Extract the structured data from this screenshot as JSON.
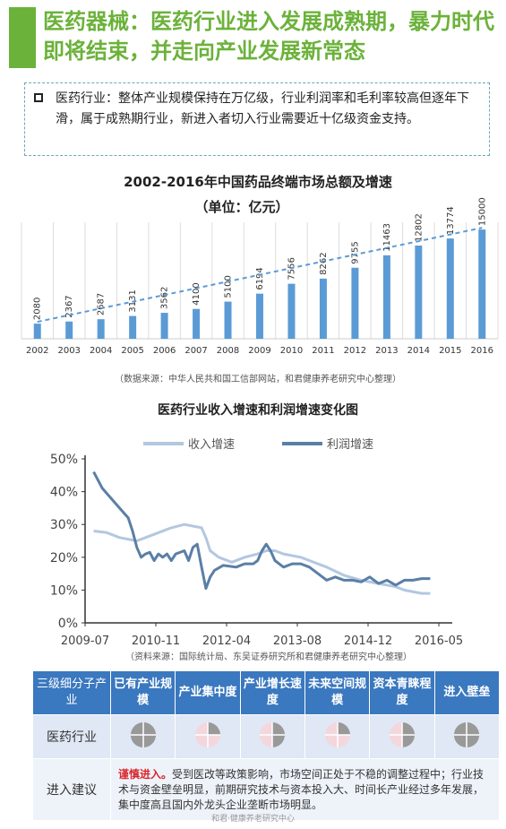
{
  "header": {
    "title": "医药器械：医药行业进入发展成熟期，暴力时代即将结束，并走向产业发展新常态"
  },
  "intro": {
    "text": "医药行业：整体产业规模保持在万亿级，行业利润率和毛利率较高但逐年下滑，属于成熟期行业，新进入者切入行业需要近十亿级资金支持。"
  },
  "colors": {
    "accent_green": "#6bb23a",
    "bar_blue": "#5b9bd5",
    "header_blue": "#3a78bf",
    "revenue_line": "#b3c7e0",
    "profit_line": "#5a7fa6",
    "pie_grey": "#999999",
    "pie_pink": "#f3d7dd"
  },
  "chart_data": [
    {
      "type": "bar",
      "title": "2002-2016年中国药品终端市场总额及增速",
      "subtitle": "（单位：亿元）",
      "categories": [
        "2002",
        "2003",
        "2004",
        "2005",
        "2006",
        "2007",
        "2008",
        "2009",
        "2010",
        "2011",
        "2012",
        "2013",
        "2014",
        "2015",
        "2016"
      ],
      "values": [
        2080,
        2367,
        2687,
        3131,
        3562,
        4100,
        5100,
        6194,
        7556,
        8262,
        9755,
        11463,
        12802,
        13774,
        15000
      ],
      "trendline": true,
      "ylim": [
        0,
        16000
      ],
      "source": "（数据来源：中华人民共和国工信部网站，和君健康养老研究中心整理）"
    },
    {
      "type": "line",
      "title": "医药行业收入增速和利润增速变化图",
      "x_ticks": [
        "2009-07",
        "2010-11",
        "2012-04",
        "2013-08",
        "2014-12",
        "2016-05"
      ],
      "y_ticks": [
        "0%",
        "10%",
        "20%",
        "30%",
        "40%",
        "50%"
      ],
      "ylim": [
        0,
        50
      ],
      "x_index_range": [
        0,
        82
      ],
      "legend_position": "top",
      "series": [
        {
          "name": "收入增速",
          "points": [
            [
              2,
              28
            ],
            [
              5,
              27.5
            ],
            [
              8,
              26
            ],
            [
              12,
              25
            ],
            [
              16,
              27
            ],
            [
              20,
              29
            ],
            [
              23,
              30
            ],
            [
              27,
              29
            ],
            [
              28,
              26
            ],
            [
              29,
              22
            ],
            [
              31,
              20
            ],
            [
              34,
              18.5
            ],
            [
              37,
              20
            ],
            [
              40,
              21
            ],
            [
              42,
              22
            ],
            [
              44,
              22
            ],
            [
              46,
              21
            ],
            [
              50,
              20
            ],
            [
              52,
              19
            ],
            [
              56,
              17
            ],
            [
              60,
              14.5
            ],
            [
              64,
              13
            ],
            [
              68,
              12
            ],
            [
              72,
              11
            ],
            [
              74,
              10
            ],
            [
              78,
              9
            ],
            [
              80,
              9
            ]
          ]
        },
        {
          "name": "利润增速",
          "points": [
            [
              2,
              46
            ],
            [
              4,
              41
            ],
            [
              6,
              38
            ],
            [
              8,
              35
            ],
            [
              10,
              32
            ],
            [
              11,
              28
            ],
            [
              12,
              23
            ],
            [
              13,
              20
            ],
            [
              14,
              21
            ],
            [
              15,
              21.5
            ],
            [
              16,
              19
            ],
            [
              17,
              21
            ],
            [
              18,
              20
            ],
            [
              19,
              21
            ],
            [
              20,
              19
            ],
            [
              21,
              21
            ],
            [
              23,
              22
            ],
            [
              24,
              19
            ],
            [
              25,
              23
            ],
            [
              26,
              24
            ],
            [
              27,
              17
            ],
            [
              28,
              10.5
            ],
            [
              29,
              14
            ],
            [
              30,
              16
            ],
            [
              32,
              17.5
            ],
            [
              35,
              17
            ],
            [
              37,
              18
            ],
            [
              39,
              18
            ],
            [
              40,
              19
            ],
            [
              41,
              22
            ],
            [
              42,
              24
            ],
            [
              43,
              22
            ],
            [
              44,
              19
            ],
            [
              46,
              17
            ],
            [
              48,
              18
            ],
            [
              50,
              18
            ],
            [
              52,
              17
            ],
            [
              54,
              15
            ],
            [
              56,
              13
            ],
            [
              58,
              14
            ],
            [
              60,
              13
            ],
            [
              62,
              13
            ],
            [
              64,
              12.5
            ],
            [
              66,
              14
            ],
            [
              68,
              12
            ],
            [
              70,
              13
            ],
            [
              72,
              11.5
            ],
            [
              74,
              13
            ],
            [
              76,
              13
            ],
            [
              78,
              13.5
            ],
            [
              80,
              13.5
            ]
          ]
        }
      ],
      "source": "（资料来源：国际统计局、东吴证券研究所和君健康养老研究中心整理）"
    }
  ],
  "eval_table": {
    "headers": [
      "三级细分子产业",
      "已有产业规模",
      "产业集中度",
      "产业增长速度",
      "未来空间规模",
      "资本青睐程度",
      "进入壁垒"
    ],
    "row_label": "医药行业",
    "ratings": [
      {
        "fill": "grey",
        "level": 0.75
      },
      {
        "fill": "pink",
        "level": 0.25
      },
      {
        "fill": "pink",
        "level": 0.5
      },
      {
        "fill": "pink",
        "level": 0.25
      },
      {
        "fill": "pink",
        "level": 0.5
      },
      {
        "fill": "grey",
        "level": 0.75
      }
    ],
    "rec_label": "进入建议",
    "rec_emphasis": "谨慎进入。",
    "rec_text": "受到医改等政策影响，市场空间正处于不稳的调整过程中；行业技术与资金壁垒明显，前期研究技术与资本投入大、时间长产业经过多年发展，集中度高且国内外龙头企业垄断市场明显。"
  },
  "footer": {
    "text": "和君·健康养老研究中心"
  }
}
